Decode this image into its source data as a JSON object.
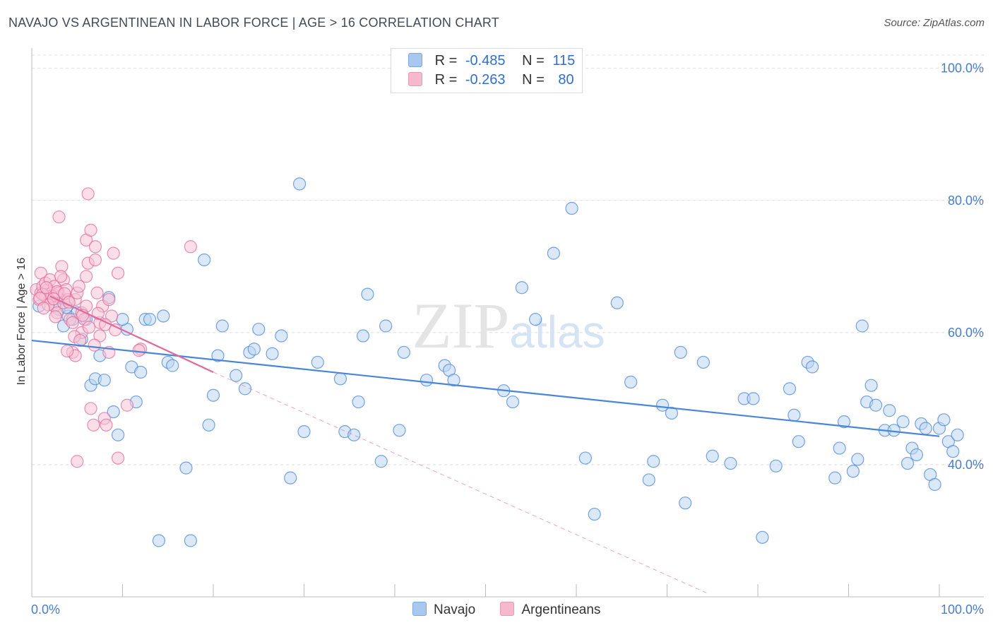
{
  "title": "NAVAJO VS ARGENTINEAN IN LABOR FORCE | AGE > 16 CORRELATION CHART",
  "source": "Source: ZipAtlas.com",
  "watermark": "ZIPatlas",
  "legend": {
    "navajo": {
      "r_label": "R =",
      "r_value": "-0.485",
      "n_label": "N =",
      "n_value": "115",
      "color": "#a8c8f0"
    },
    "argentinean": {
      "r_label": "R =",
      "r_value": "-0.263",
      "n_label": "N =",
      "n_value": "80",
      "color": "#f5b8cc"
    }
  },
  "chart_data": {
    "type": "scatter",
    "xlabel": "",
    "ylabel": "In Labor Force | Age > 16",
    "xlim": [
      0,
      100
    ],
    "ylim": [
      20,
      102
    ],
    "x_tick_labels": [
      "0.0%",
      "100.0%"
    ],
    "y_ticks": [
      40,
      60,
      80,
      100
    ],
    "y_tick_labels": [
      "40.0%",
      "60.0%",
      "80.0%",
      "100.0%"
    ],
    "grid": true,
    "legend_bottom": [
      "Navajo",
      "Argentineans"
    ],
    "series": [
      {
        "name": "Navajo",
        "color": "#4a86d8",
        "fill": "#bcd5f3",
        "trend": {
          "x": [
            0,
            100
          ],
          "y": [
            58.8,
            44.3
          ],
          "style": "solid"
        },
        "points": [
          [
            0.8,
            64.0
          ],
          [
            1.5,
            65.5
          ],
          [
            2.0,
            66.0
          ],
          [
            2.5,
            64.5
          ],
          [
            3.0,
            63.5
          ],
          [
            3.5,
            61.0
          ],
          [
            4.0,
            62.5
          ],
          [
            4.5,
            62.0
          ],
          [
            5.0,
            63.0
          ],
          [
            5.5,
            59.0
          ],
          [
            6.0,
            62.0
          ],
          [
            6.5,
            52.0
          ],
          [
            7.0,
            53.0
          ],
          [
            7.5,
            56.5
          ],
          [
            8.0,
            52.8
          ],
          [
            8.5,
            65.3
          ],
          [
            9.0,
            48.0
          ],
          [
            9.5,
            44.5
          ],
          [
            10.5,
            60.5
          ],
          [
            10.0,
            62.0
          ],
          [
            11.0,
            54.8
          ],
          [
            11.5,
            49.5
          ],
          [
            12.0,
            54.0
          ],
          [
            12.5,
            62.0
          ],
          [
            13.0,
            62.0
          ],
          [
            14.5,
            62.5
          ],
          [
            14.0,
            28.5
          ],
          [
            15.0,
            55.5
          ],
          [
            15.5,
            55.0
          ],
          [
            17.0,
            39.5
          ],
          [
            17.5,
            28.5
          ],
          [
            19.0,
            71.0
          ],
          [
            19.5,
            46.0
          ],
          [
            20.0,
            50.5
          ],
          [
            20.5,
            56.5
          ],
          [
            21.0,
            61.0
          ],
          [
            22.5,
            53.5
          ],
          [
            23.5,
            51.5
          ],
          [
            24.0,
            57.0
          ],
          [
            24.5,
            57.5
          ],
          [
            25.0,
            60.5
          ],
          [
            26.5,
            56.8
          ],
          [
            27.5,
            59.5
          ],
          [
            28.5,
            38.0
          ],
          [
            29.5,
            82.5
          ],
          [
            30.0,
            45.0
          ],
          [
            31.5,
            55.5
          ],
          [
            34.0,
            53.0
          ],
          [
            34.5,
            45.0
          ],
          [
            35.5,
            44.5
          ],
          [
            36.0,
            49.5
          ],
          [
            36.5,
            59.5
          ],
          [
            37.0,
            65.8
          ],
          [
            38.5,
            40.5
          ],
          [
            39.0,
            61.0
          ],
          [
            40.5,
            45.2
          ],
          [
            41.0,
            57.0
          ],
          [
            43.5,
            52.8
          ],
          [
            45.5,
            55.0
          ],
          [
            46.0,
            54.3
          ],
          [
            46.5,
            52.8
          ],
          [
            52.0,
            51.2
          ],
          [
            53.0,
            49.5
          ],
          [
            54.0,
            66.8
          ],
          [
            55.5,
            62.0
          ],
          [
            57.5,
            72.0
          ],
          [
            59.5,
            78.8
          ],
          [
            61.0,
            41.0
          ],
          [
            62.0,
            32.5
          ],
          [
            64.5,
            64.5
          ],
          [
            66.0,
            52.5
          ],
          [
            68.0,
            37.7
          ],
          [
            68.5,
            40.5
          ],
          [
            69.5,
            49.0
          ],
          [
            70.5,
            47.8
          ],
          [
            71.5,
            57.0
          ],
          [
            72.0,
            34.2
          ],
          [
            74.0,
            55.5
          ],
          [
            75.0,
            41.3
          ],
          [
            77.0,
            40.2
          ],
          [
            78.5,
            50.0
          ],
          [
            79.5,
            50.0
          ],
          [
            80.5,
            29.0
          ],
          [
            82.0,
            39.8
          ],
          [
            83.5,
            51.5
          ],
          [
            84.0,
            47.5
          ],
          [
            84.5,
            43.5
          ],
          [
            85.5,
            55.5
          ],
          [
            86.0,
            54.8
          ],
          [
            88.5,
            38.0
          ],
          [
            89.0,
            42.5
          ],
          [
            89.5,
            46.5
          ],
          [
            90.5,
            39.0
          ],
          [
            91.0,
            40.8
          ],
          [
            91.5,
            61.0
          ],
          [
            92.0,
            49.5
          ],
          [
            92.5,
            52.0
          ],
          [
            93.0,
            49.0
          ],
          [
            94.0,
            45.2
          ],
          [
            94.5,
            48.2
          ],
          [
            95.0,
            45.2
          ],
          [
            96.0,
            46.5
          ],
          [
            96.5,
            40.2
          ],
          [
            97.0,
            42.5
          ],
          [
            97.5,
            41.5
          ],
          [
            98.0,
            46.2
          ],
          [
            98.5,
            45.5
          ],
          [
            99.0,
            38.5
          ],
          [
            99.5,
            37.0
          ],
          [
            100.0,
            45.5
          ],
          [
            100.5,
            46.8
          ],
          [
            101.0,
            43.5
          ],
          [
            101.5,
            42.0
          ],
          [
            102.0,
            44.5
          ],
          [
            3.8,
            63.8
          ]
        ]
      },
      {
        "name": "Argentineans",
        "color": "#e06a9a",
        "fill": "#f8c3d5",
        "trend": {
          "x": [
            2,
            20
          ],
          "y": [
            65.5,
            54.0
          ],
          "style": "solid"
        },
        "trend_ext": {
          "x": [
            20,
            74.5
          ],
          "y": [
            54.0,
            20.5
          ],
          "style": "dashed"
        },
        "points": [
          [
            0.5,
            66.5
          ],
          [
            0.8,
            65.0
          ],
          [
            1.0,
            66.0
          ],
          [
            1.2,
            67.0
          ],
          [
            1.5,
            65.5
          ],
          [
            1.8,
            66.5
          ],
          [
            2.0,
            65.0
          ],
          [
            2.2,
            66.0
          ],
          [
            2.5,
            64.0
          ],
          [
            2.8,
            65.5
          ],
          [
            1.0,
            69.0
          ],
          [
            1.5,
            67.5
          ],
          [
            2.0,
            68.0
          ],
          [
            2.5,
            67.0
          ],
          [
            2.8,
            63.0
          ],
          [
            3.0,
            66.0
          ],
          [
            3.0,
            77.5
          ],
          [
            3.3,
            70.0
          ],
          [
            3.5,
            68.0
          ],
          [
            3.8,
            66.5
          ],
          [
            3.5,
            64.5
          ],
          [
            4.0,
            65.0
          ],
          [
            4.2,
            62.0
          ],
          [
            4.5,
            61.5
          ],
          [
            4.8,
            65.0
          ],
          [
            4.5,
            57.0
          ],
          [
            4.8,
            56.5
          ],
          [
            5.0,
            66.0
          ],
          [
            5.2,
            67.0
          ],
          [
            5.5,
            63.0
          ],
          [
            5.5,
            60.0
          ],
          [
            5.8,
            62.0
          ],
          [
            6.0,
            64.0
          ],
          [
            6.0,
            68.5
          ],
          [
            6.2,
            70.5
          ],
          [
            6.0,
            74.0
          ],
          [
            6.2,
            81.0
          ],
          [
            6.5,
            75.5
          ],
          [
            6.5,
            48.5
          ],
          [
            6.8,
            46.0
          ],
          [
            7.0,
            73.0
          ],
          [
            7.0,
            71.0
          ],
          [
            7.2,
            66.0
          ],
          [
            7.5,
            59.5
          ],
          [
            7.5,
            61.5
          ],
          [
            7.8,
            64.0
          ],
          [
            8.0,
            47.0
          ],
          [
            8.2,
            46.0
          ],
          [
            8.5,
            65.0
          ],
          [
            8.5,
            57.0
          ],
          [
            8.8,
            62.5
          ],
          [
            9.0,
            72.0
          ],
          [
            9.5,
            69.0
          ],
          [
            9.5,
            41.0
          ],
          [
            10.5,
            49.0
          ],
          [
            12.0,
            57.5
          ],
          [
            17.5,
            73.0
          ],
          [
            5.0,
            40.5
          ],
          [
            2.2,
            65.5
          ],
          [
            1.2,
            65.8
          ],
          [
            1.8,
            64.2
          ],
          [
            3.2,
            68.5
          ],
          [
            2.8,
            66.2
          ],
          [
            0.9,
            65.2
          ],
          [
            1.6,
            66.8
          ],
          [
            2.4,
            65.1
          ],
          [
            3.6,
            65.9
          ],
          [
            4.1,
            64.6
          ],
          [
            5.6,
            62.6
          ],
          [
            6.3,
            60.8
          ],
          [
            7.3,
            62.9
          ],
          [
            4.7,
            59.4
          ],
          [
            5.3,
            58.8
          ],
          [
            3.9,
            57.2
          ],
          [
            6.9,
            58.1
          ],
          [
            2.6,
            62.4
          ],
          [
            1.3,
            63.7
          ],
          [
            11.8,
            57.3
          ],
          [
            8.1,
            61.2
          ],
          [
            9.2,
            60.4
          ]
        ]
      }
    ]
  }
}
